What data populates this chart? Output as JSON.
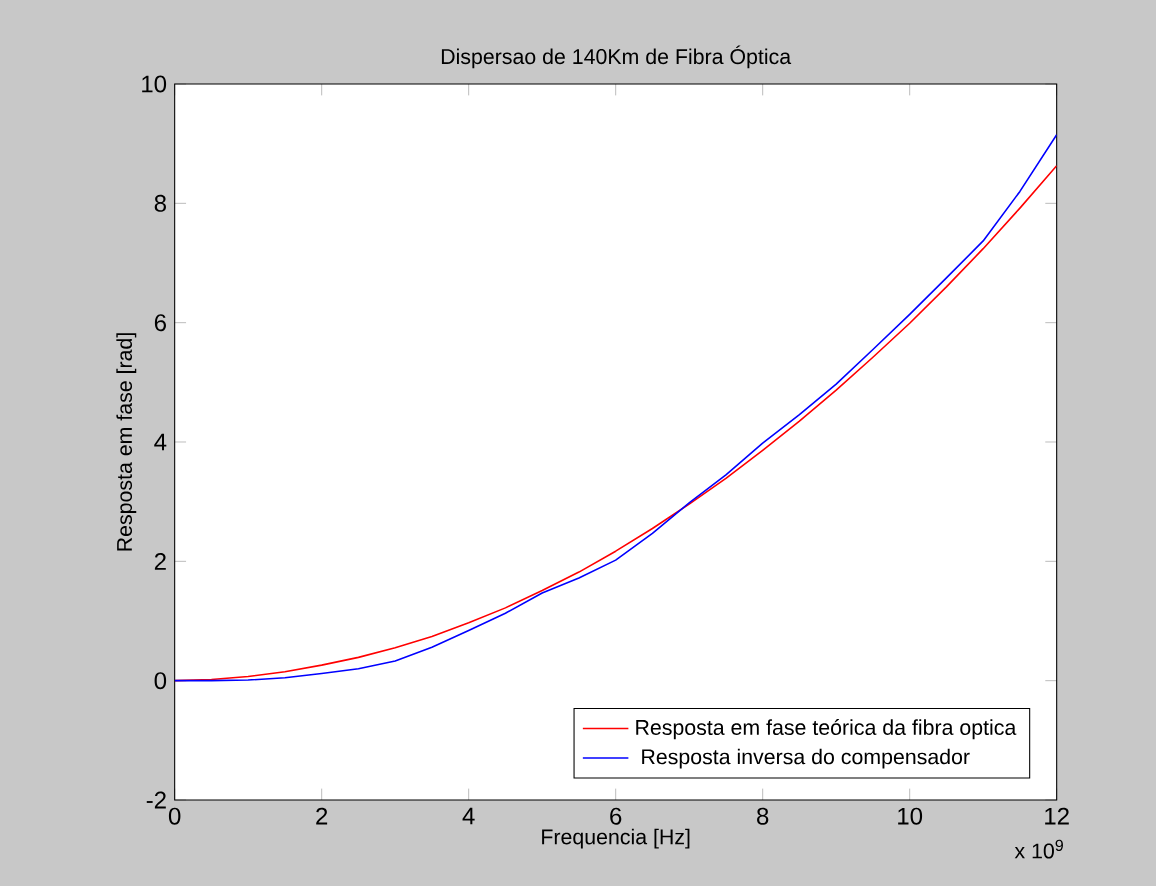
{
  "chart_data": {
    "type": "line",
    "title": "Dispersao de 140Km de Fibra Óptica",
    "xlabel": "Frequencia [Hz]",
    "ylabel": "Resposta em fase [rad]",
    "annotations": [
      "x 10$^{9}$"
    ],
    "x": [
      0,
      0.5,
      1,
      1.5,
      2,
      2.5,
      3,
      3.5,
      4,
      4.5,
      5,
      5.5,
      6,
      6.5,
      7,
      7.5,
      8,
      8.5,
      9,
      9.5,
      10,
      10.5,
      11,
      11.5,
      12
    ],
    "series": [
      {
        "name": "Resposta em fase teórica da fibra optica",
        "color": "#ff0000",
        "values": [
          0,
          0.02,
          0.07,
          0.15,
          0.26,
          0.39,
          0.55,
          0.74,
          0.97,
          1.22,
          1.51,
          1.82,
          2.17,
          2.55,
          2.96,
          3.39,
          3.86,
          4.35,
          4.87,
          5.42,
          5.99,
          6.6,
          7.24,
          7.92,
          8.63
        ]
      },
      {
        "name": " Resposta inversa do compensador",
        "color": "#0000ff",
        "values": [
          0,
          0,
          0.01,
          0.05,
          0.12,
          0.2,
          0.33,
          0.56,
          0.84,
          1.13,
          1.47,
          1.72,
          2.02,
          2.47,
          2.98,
          3.45,
          3.98,
          4.46,
          4.97,
          5.55,
          6.14,
          6.75,
          7.37,
          8.2,
          9.15
        ]
      }
    ],
    "xlim": [
      0,
      12
    ],
    "ylim": [
      -2,
      10
    ],
    "xticks": [
      0,
      2,
      4,
      6,
      8,
      10,
      12
    ],
    "yticks": [
      -2,
      0,
      2,
      4,
      6,
      8,
      10
    ],
    "legend": "bottom right"
  }
}
